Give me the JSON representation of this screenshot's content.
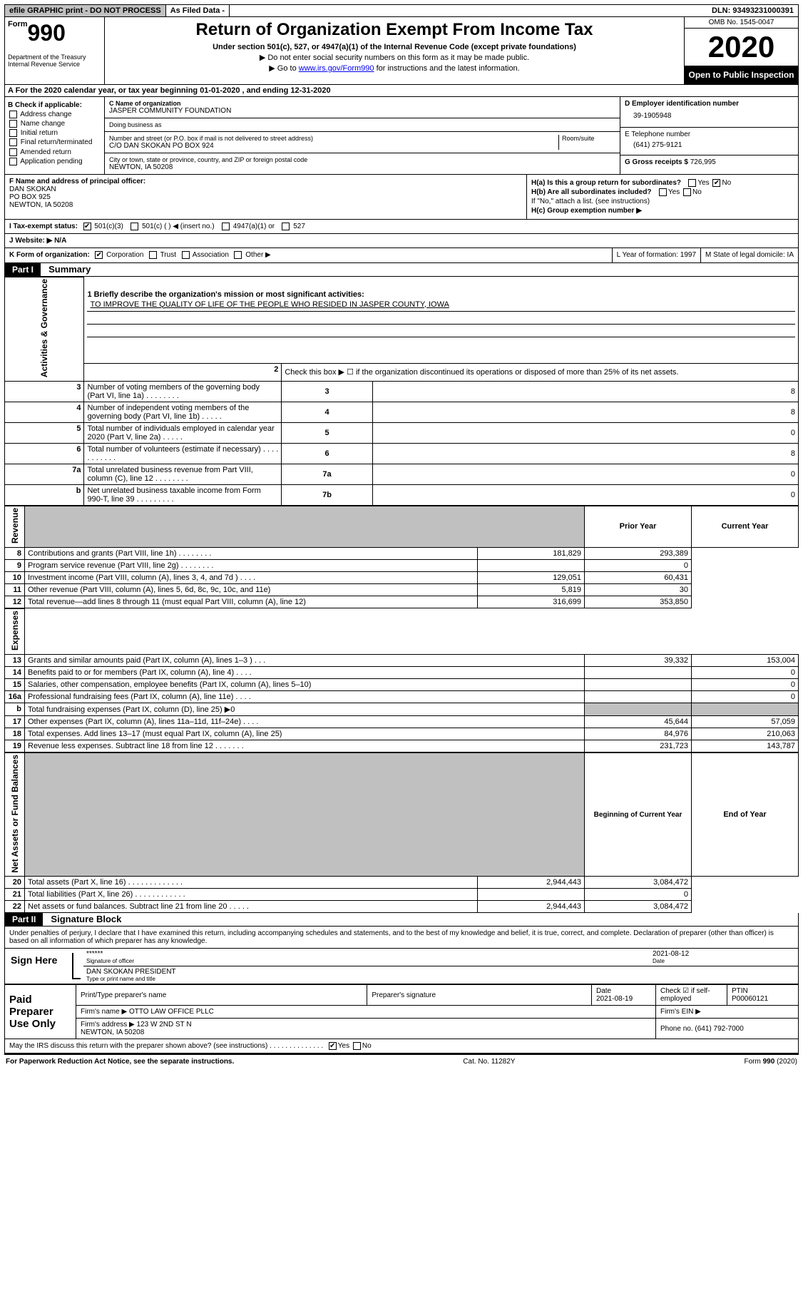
{
  "topbar": {
    "efile": "efile GRAPHIC print - DO NOT PROCESS",
    "asfiled": "As Filed Data -",
    "dln": "DLN: 93493231000391"
  },
  "header": {
    "form_prefix": "Form",
    "form_no": "990",
    "dept": "Department of the Treasury\nInternal Revenue Service",
    "title": "Return of Organization Exempt From Income Tax",
    "sub": "Under section 501(c), 527, or 4947(a)(1) of the Internal Revenue Code (except private foundations)",
    "hint1": "▶ Do not enter social security numbers on this form as it may be made public.",
    "hint2": "▶ Go to www.irs.gov/Form990 for instructions and the latest information.",
    "omb": "OMB No. 1545-0047",
    "year": "2020",
    "inspect": "Open to Public Inspection"
  },
  "lineA": "A  For the 2020 calendar year, or tax year beginning 01-01-2020   , and ending 12-31-2020",
  "boxB": {
    "title": "B Check if applicable:",
    "items": [
      "Address change",
      "Name change",
      "Initial return",
      "Final return/terminated",
      "Amended return",
      "Application pending"
    ]
  },
  "boxC": {
    "name_label": "C Name of organization",
    "name": "JASPER COMMUNITY FOUNDATION",
    "dba_label": "Doing business as",
    "dba": "",
    "street_label": "Number and street (or P.O. box if mail is not delivered to street address)",
    "room_label": "Room/suite",
    "street": "C/O DAN SKOKAN PO BOX 924",
    "city_label": "City or town, state or province, country, and ZIP or foreign postal code",
    "city": "NEWTON, IA  50208"
  },
  "boxD": {
    "label": "D Employer identification number",
    "value": "39-1905948"
  },
  "boxE": {
    "label": "E Telephone number",
    "value": "(641) 275-9121"
  },
  "boxG": {
    "label": "G Gross receipts $",
    "value": "726,995"
  },
  "boxF": {
    "label": "F  Name and address of principal officer:",
    "line1": "DAN SKOKAN",
    "line2": "PO BOX 925",
    "line3": "NEWTON, IA  50208"
  },
  "boxH": {
    "a": "H(a) Is this a group return for subordinates?",
    "b": "H(b) Are all subordinates included?",
    "note": "If \"No,\" attach a list. (see instructions)",
    "c": "H(c) Group exemption number ▶"
  },
  "lineI": "I  Tax-exempt status:",
  "lineI_501c3": "501(c)(3)",
  "lineI_501c": "501(c) (  ) ◀ (insert no.)",
  "lineI_4947": "4947(a)(1) or",
  "lineI_527": "527",
  "lineJ": "J  Website: ▶   N/A",
  "lineK": "K Form of organization:",
  "lineK_corp": "Corporation",
  "lineK_trust": "Trust",
  "lineK_assoc": "Association",
  "lineK_other": "Other ▶",
  "lineL": "L Year of formation: 1997",
  "lineM": "M State of legal domicile: IA",
  "partI": {
    "label": "Part I",
    "title": "Summary"
  },
  "summary": {
    "q1": "1 Briefly describe the organization's mission or most significant activities:",
    "mission": "TO IMPROVE THE QUALITY OF LIFE OF THE PEOPLE WHO RESIDED IN JASPER COUNTY, IOWA",
    "q2": "Check this box ▶ ☐ if the organization discontinued its operations or disposed of more than 25% of its net assets.",
    "rows_top": [
      {
        "no": "3",
        "desc": "Number of voting members of the governing body (Part VI, line 1a)   .   .   .   .   .   .   .   .",
        "box": "3",
        "val": "8"
      },
      {
        "no": "4",
        "desc": "Number of independent voting members of the governing body (Part VI, line 1b)   .   .   .   .   .",
        "box": "4",
        "val": "8"
      },
      {
        "no": "5",
        "desc": "Total number of individuals employed in calendar year 2020 (Part V, line 2a)   .   .   .   .   .",
        "box": "5",
        "val": "0"
      },
      {
        "no": "6",
        "desc": "Total number of volunteers (estimate if necessary)   .   .   .   .   .   .   .   .   .   .   .",
        "box": "6",
        "val": "8"
      },
      {
        "no": "7a",
        "desc": "Total unrelated business revenue from Part VIII, column (C), line 12   .   .   .   .   .   .   .   .",
        "box": "7a",
        "val": "0"
      },
      {
        "no": "b",
        "desc": "Net unrelated business taxable income from Form 990-T, line 39   .   .   .   .   .   .   .   .   .",
        "box": "7b",
        "val": "0"
      }
    ],
    "col_prior": "Prior Year",
    "col_current": "Current Year",
    "revenue": [
      {
        "no": "8",
        "desc": "Contributions and grants (Part VIII, line 1h)   .   .   .   .   .   .   .   .",
        "prior": "181,829",
        "curr": "293,389"
      },
      {
        "no": "9",
        "desc": "Program service revenue (Part VIII, line 2g)   .   .   .   .   .   .   .   .",
        "prior": "",
        "curr": "0"
      },
      {
        "no": "10",
        "desc": "Investment income (Part VIII, column (A), lines 3, 4, and 7d )   .   .   .   .",
        "prior": "129,051",
        "curr": "60,431"
      },
      {
        "no": "11",
        "desc": "Other revenue (Part VIII, column (A), lines 5, 6d, 8c, 9c, 10c, and 11e)",
        "prior": "5,819",
        "curr": "30"
      },
      {
        "no": "12",
        "desc": "Total revenue—add lines 8 through 11 (must equal Part VIII, column (A), line 12)",
        "prior": "316,699",
        "curr": "353,850"
      }
    ],
    "expenses": [
      {
        "no": "13",
        "desc": "Grants and similar amounts paid (Part IX, column (A), lines 1–3 )   .   .   .",
        "prior": "39,332",
        "curr": "153,004"
      },
      {
        "no": "14",
        "desc": "Benefits paid to or for members (Part IX, column (A), line 4)   .   .   .   .",
        "prior": "",
        "curr": "0"
      },
      {
        "no": "15",
        "desc": "Salaries, other compensation, employee benefits (Part IX, column (A), lines 5–10)",
        "prior": "",
        "curr": "0"
      },
      {
        "no": "16a",
        "desc": "Professional fundraising fees (Part IX, column (A), line 11e)   .   .   .   .",
        "prior": "",
        "curr": "0"
      },
      {
        "no": "b",
        "desc": "Total fundraising expenses (Part IX, column (D), line 25) ▶0",
        "prior": "SHADE",
        "curr": "SHADE"
      },
      {
        "no": "17",
        "desc": "Other expenses (Part IX, column (A), lines 11a–11d, 11f–24e)   .   .   .   .",
        "prior": "45,644",
        "curr": "57,059"
      },
      {
        "no": "18",
        "desc": "Total expenses. Add lines 13–17 (must equal Part IX, column (A), line 25)",
        "prior": "84,976",
        "curr": "210,063"
      },
      {
        "no": "19",
        "desc": "Revenue less expenses. Subtract line 18 from line 12  .   .   .   .   .   .   .",
        "prior": "231,723",
        "curr": "143,787"
      }
    ],
    "col_begin": "Beginning of Current Year",
    "col_end": "End of Year",
    "netassets": [
      {
        "no": "20",
        "desc": "Total assets (Part X, line 16)   .   .   .   .   .   .   .   .   .   .   .   .   .",
        "prior": "2,944,443",
        "curr": "3,084,472"
      },
      {
        "no": "21",
        "desc": "Total liabilities (Part X, line 26)  .   .   .   .   .   .   .   .   .   .   .   .",
        "prior": "",
        "curr": "0"
      },
      {
        "no": "22",
        "desc": "Net assets or fund balances. Subtract line 21 from line 20  .   .   .   .   .",
        "prior": "2,944,443",
        "curr": "3,084,472"
      }
    ],
    "vlabel_ag": "Activities & Governance",
    "vlabel_rev": "Revenue",
    "vlabel_exp": "Expenses",
    "vlabel_net": "Net Assets or Fund Balances"
  },
  "partII": {
    "label": "Part II",
    "title": "Signature Block"
  },
  "sig": {
    "jurat": "Under penalties of perjury, I declare that I have examined this return, including accompanying schedules and statements, and to the best of my knowledge and belief, it is true, correct, and complete. Declaration of preparer (other than officer) is based on all information of which preparer has any knowledge.",
    "sign_here": "Sign Here",
    "stars": "******",
    "sig_officer_label": "Signature of officer",
    "date1": "2021-08-12",
    "date_label": "Date",
    "name": "DAN SKOKAN PRESIDENT",
    "name_label": "Type or print name and title",
    "paid": "Paid Preparer Use Only",
    "prep_name_label": "Print/Type preparer's name",
    "prep_sig_label": "Preparer's signature",
    "prep_date_label": "Date",
    "prep_date": "2021-08-19",
    "check_self": "Check ☑ if self-employed",
    "ptin_label": "PTIN",
    "ptin": "P00060121",
    "firm_name_label": "Firm's name    ▶",
    "firm_name": "OTTO LAW OFFICE PLLC",
    "firm_ein_label": "Firm's EIN ▶",
    "firm_addr_label": "Firm's address ▶",
    "firm_addr": "123 W 2ND ST N\nNEWTON, IA  50208",
    "phone_label": "Phone no.",
    "phone": "(641) 792-7000",
    "discuss": "May the IRS discuss this return with the preparer shown above? (see instructions)   .   .   .   .   .   .   .   .   .   .   .   .   .   ."
  },
  "footer": {
    "left": "For Paperwork Reduction Act Notice, see the separate instructions.",
    "mid": "Cat. No. 11282Y",
    "right": "Form 990 (2020)"
  }
}
